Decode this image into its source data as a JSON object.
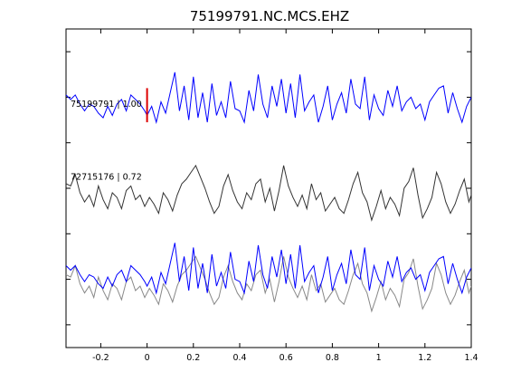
{
  "chart_data": {
    "type": "line",
    "title": "75199791.NC.MCS.EHZ",
    "xlabel": "",
    "ylabel": "",
    "xlim": [
      -0.35,
      1.4
    ],
    "ylim": [
      0,
      7
    ],
    "x_ticks": [
      -0.2,
      0,
      0.2,
      0.4,
      0.6,
      0.8,
      1,
      1.2,
      1.4
    ],
    "x_tick_labels": [
      "-0.2",
      "0",
      "0.2",
      "0.4",
      "0.6",
      "0.8",
      "1",
      "1.2",
      "1.4"
    ],
    "y_ticks": [
      0.5,
      1.5,
      2.5,
      3.5,
      4.5,
      5.5,
      6.5
    ],
    "grid": false,
    "colors": {
      "primary": "#0000ff",
      "secondary": "#333333",
      "overlay_secondary": "#888888",
      "pick": "#dd0000"
    },
    "traces": [
      {
        "label": "75199791 | 1.00",
        "color": "#0000ff",
        "x": [
          -0.35,
          -0.33,
          -0.31,
          -0.29,
          -0.27,
          -0.25,
          -0.23,
          -0.21,
          -0.19,
          -0.17,
          -0.15,
          -0.13,
          -0.11,
          -0.09,
          -0.07,
          -0.05,
          -0.03,
          -0.01,
          0.0,
          0.02,
          0.04,
          0.06,
          0.08,
          0.1,
          0.12,
          0.14,
          0.16,
          0.18,
          0.2,
          0.22,
          0.24,
          0.26,
          0.28,
          0.3,
          0.32,
          0.34,
          0.36,
          0.38,
          0.4,
          0.42,
          0.44,
          0.46,
          0.48,
          0.5,
          0.52,
          0.54,
          0.56,
          0.58,
          0.6,
          0.62,
          0.64,
          0.66,
          0.68,
          0.7,
          0.72,
          0.74,
          0.76,
          0.78,
          0.8,
          0.82,
          0.84,
          0.86,
          0.88,
          0.9,
          0.92,
          0.94,
          0.96,
          0.98,
          1.0,
          1.02,
          1.04,
          1.06,
          1.08,
          1.1,
          1.12,
          1.14,
          1.16,
          1.18,
          1.2,
          1.22,
          1.24,
          1.26,
          1.28,
          1.3,
          1.32,
          1.34,
          1.36,
          1.38,
          1.4
        ],
        "y": [
          5.55,
          5.45,
          5.55,
          5.35,
          5.2,
          5.35,
          5.3,
          5.15,
          5.05,
          5.3,
          5.1,
          5.35,
          5.45,
          5.2,
          5.55,
          5.45,
          5.35,
          5.2,
          5.1,
          5.3,
          4.95,
          5.4,
          5.15,
          5.6,
          6.05,
          5.2,
          5.75,
          5.0,
          5.95,
          5.05,
          5.6,
          4.95,
          5.8,
          5.1,
          5.4,
          5.05,
          5.85,
          5.25,
          5.2,
          4.95,
          5.65,
          5.2,
          6.0,
          5.35,
          5.05,
          5.75,
          5.3,
          5.9,
          5.15,
          5.8,
          5.05,
          6.0,
          5.2,
          5.4,
          5.55,
          4.95,
          5.3,
          5.75,
          5.0,
          5.35,
          5.6,
          5.15,
          5.9,
          5.35,
          5.25,
          5.95,
          5.0,
          5.55,
          5.25,
          5.1,
          5.65,
          5.3,
          5.75,
          5.2,
          5.4,
          5.5,
          5.25,
          5.35,
          5.0,
          5.4,
          5.55,
          5.7,
          5.75,
          5.15,
          5.6,
          5.25,
          4.95,
          5.3,
          5.5
        ]
      },
      {
        "label": "72715176 | 0.72",
        "color": "#333333",
        "x": [
          -0.35,
          -0.33,
          -0.31,
          -0.29,
          -0.27,
          -0.25,
          -0.23,
          -0.21,
          -0.19,
          -0.17,
          -0.15,
          -0.13,
          -0.11,
          -0.09,
          -0.07,
          -0.05,
          -0.03,
          -0.01,
          0.01,
          0.03,
          0.05,
          0.07,
          0.09,
          0.11,
          0.13,
          0.15,
          0.17,
          0.19,
          0.21,
          0.23,
          0.25,
          0.27,
          0.29,
          0.31,
          0.33,
          0.35,
          0.37,
          0.39,
          0.41,
          0.43,
          0.45,
          0.47,
          0.49,
          0.51,
          0.53,
          0.55,
          0.57,
          0.59,
          0.61,
          0.63,
          0.65,
          0.67,
          0.69,
          0.71,
          0.73,
          0.75,
          0.77,
          0.79,
          0.81,
          0.83,
          0.85,
          0.87,
          0.89,
          0.91,
          0.93,
          0.95,
          0.97,
          0.99,
          1.01,
          1.03,
          1.05,
          1.07,
          1.09,
          1.11,
          1.13,
          1.15,
          1.17,
          1.19,
          1.21,
          1.23,
          1.25,
          1.27,
          1.29,
          1.31,
          1.33,
          1.35,
          1.37,
          1.39,
          1.4
        ],
        "y": [
          3.6,
          3.55,
          3.8,
          3.4,
          3.2,
          3.35,
          3.1,
          3.55,
          3.25,
          3.05,
          3.4,
          3.3,
          3.05,
          3.45,
          3.55,
          3.25,
          3.35,
          3.1,
          3.3,
          3.15,
          2.95,
          3.4,
          3.25,
          3.0,
          3.35,
          3.6,
          3.7,
          3.85,
          4.0,
          3.75,
          3.5,
          3.2,
          2.95,
          3.1,
          3.55,
          3.8,
          3.45,
          3.2,
          3.05,
          3.4,
          3.25,
          3.6,
          3.7,
          3.2,
          3.5,
          3.0,
          3.45,
          4.0,
          3.55,
          3.3,
          3.1,
          3.35,
          3.05,
          3.6,
          3.25,
          3.4,
          3.0,
          3.15,
          3.3,
          3.05,
          2.95,
          3.25,
          3.6,
          3.85,
          3.4,
          3.2,
          2.8,
          3.1,
          3.45,
          3.05,
          3.3,
          3.15,
          2.9,
          3.5,
          3.65,
          3.95,
          3.35,
          2.85,
          3.05,
          3.3,
          3.85,
          3.6,
          3.2,
          2.95,
          3.15,
          3.45,
          3.7,
          3.2,
          3.35
        ]
      }
    ]
  }
}
